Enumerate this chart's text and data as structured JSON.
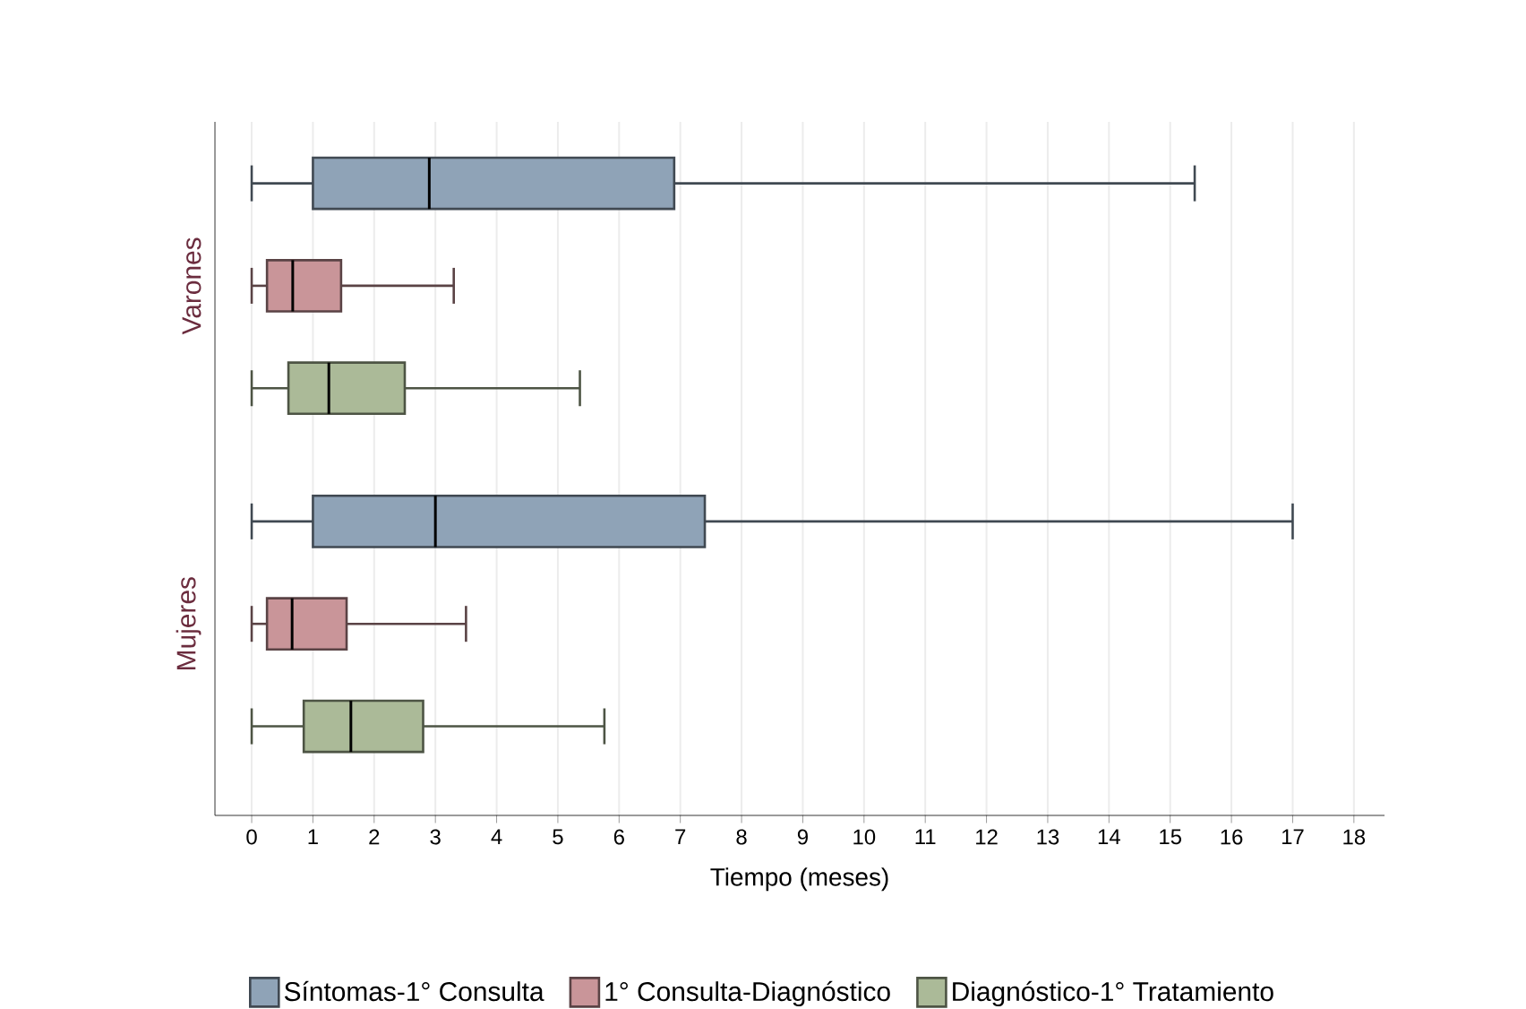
{
  "chart_data": {
    "type": "box",
    "orientation": "horizontal",
    "categories": [
      "Varones",
      "Mujeres"
    ],
    "xlabel": "Tiempo (meses)",
    "xlim": [
      -0.6,
      18.5
    ],
    "xticks": [
      0,
      1,
      2,
      3,
      4,
      5,
      6,
      7,
      8,
      9,
      10,
      11,
      12,
      13,
      14,
      15,
      16,
      17,
      18
    ],
    "grid": "x",
    "legend": "bottom",
    "series": [
      {
        "name": "Síntomas-1° Consulta",
        "color": "#8fa3b7",
        "boxes": [
          {
            "low": 0,
            "q1": 1.0,
            "median": 2.9,
            "q3": 6.9,
            "high": 15.4
          },
          {
            "low": 0,
            "q1": 1.0,
            "median": 3.0,
            "q3": 7.4,
            "high": 17.0
          }
        ]
      },
      {
        "name": "1° Consulta-Diagnóstico",
        "color": "#c99599",
        "boxes": [
          {
            "low": 0,
            "q1": 0.25,
            "median": 0.67,
            "q3": 1.46,
            "high": 3.3
          },
          {
            "low": 0,
            "q1": 0.25,
            "median": 0.66,
            "q3": 1.55,
            "high": 3.5
          }
        ]
      },
      {
        "name": "Diagnóstico-1° Tratamiento",
        "color": "#abba98",
        "boxes": [
          {
            "low": 0,
            "q1": 0.6,
            "median": 1.26,
            "q3": 2.5,
            "high": 5.36
          },
          {
            "low": 0,
            "q1": 0.85,
            "median": 1.62,
            "q3": 2.8,
            "high": 5.76
          }
        ]
      }
    ]
  }
}
